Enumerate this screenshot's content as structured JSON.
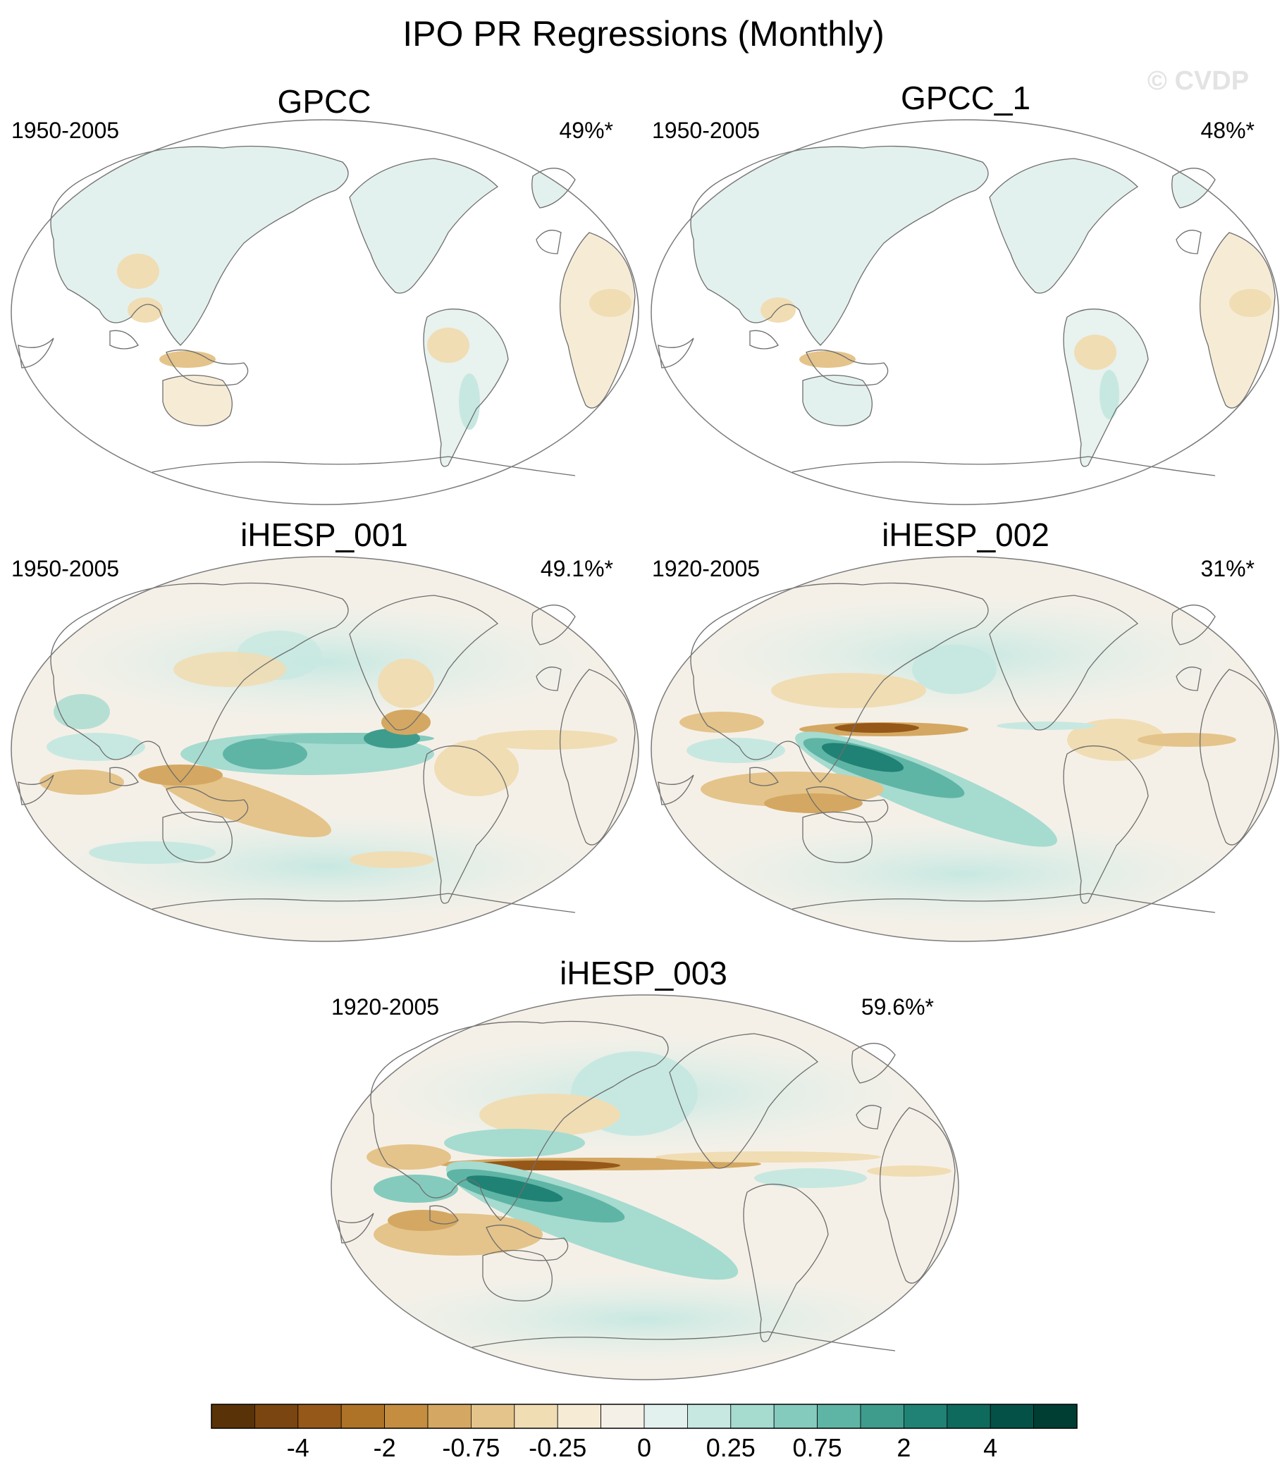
{
  "title": "IPO PR Regressions (Monthly)",
  "watermark": "© CVDP",
  "panels": [
    {
      "name": "GPCC",
      "period": "1950-2005",
      "pct": "49%*",
      "kind": "obs"
    },
    {
      "name": "GPCC_1",
      "period": "1950-2005",
      "pct": "48%*",
      "kind": "obs"
    },
    {
      "name": "iHESP_001",
      "period": "1950-2005",
      "pct": "49.1%*",
      "kind": "model"
    },
    {
      "name": "iHESP_002",
      "period": "1920-2005",
      "pct": "31%*",
      "kind": "model"
    },
    {
      "name": "iHESP_003",
      "period": "1920-2005",
      "pct": "59.6%*",
      "kind": "model"
    }
  ],
  "colorbar": {
    "colors": [
      "#5a3208",
      "#7a4510",
      "#955818",
      "#ae7327",
      "#c48d40",
      "#d4a862",
      "#e4c48a",
      "#f0ddb4",
      "#f6ecd6",
      "#f5f0e7",
      "#e3f1ee",
      "#c7e8e1",
      "#a6dbd0",
      "#84cbbd",
      "#5fb5a5",
      "#3e9c8d",
      "#1f8275",
      "#0f6a5e",
      "#045247",
      "#003d33"
    ],
    "tick_labels": [
      "-4",
      "-2",
      "-0.75",
      "-0.25",
      "0",
      "0.25",
      "0.75",
      "2",
      "4"
    ]
  }
}
